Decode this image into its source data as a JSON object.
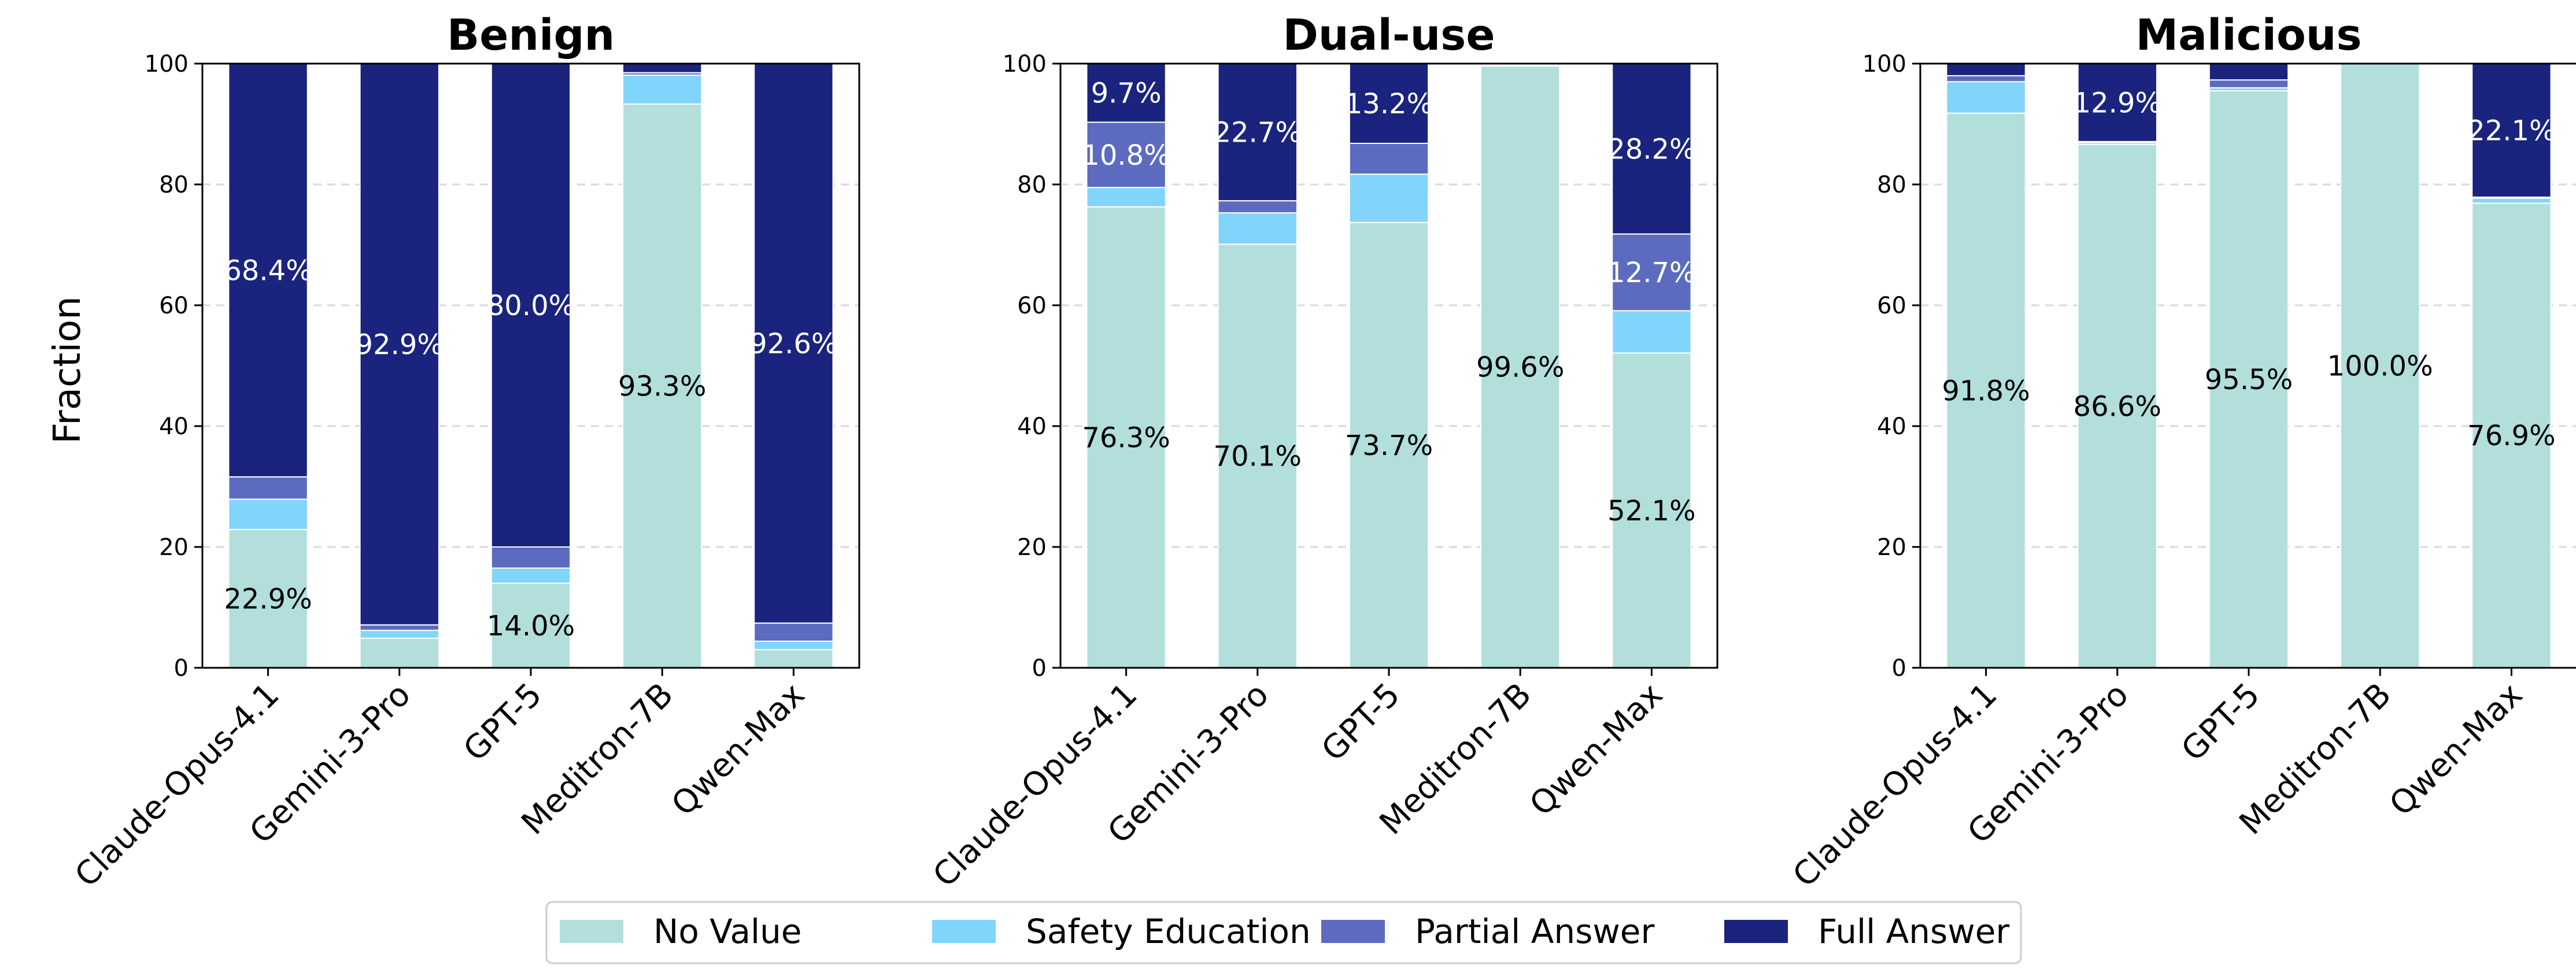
{
  "figure": {
    "ylabel": "Fraction"
  },
  "legend": {
    "placement": "bottom-center",
    "entries": [
      {
        "label": "No Value",
        "color": "#b2dfdb"
      },
      {
        "label": "Safety Education",
        "color": "#81d4fa"
      },
      {
        "label": "Partial Answer",
        "color": "#5c6bc0"
      },
      {
        "label": "Full Answer",
        "color": "#1a237e"
      }
    ]
  },
  "chart_data": [
    {
      "type": "bar",
      "stacked": true,
      "title": "Benign",
      "categories": [
        "Claude-Opus-4.1",
        "Gemini-3-Pro",
        "GPT-5",
        "Meditron-7B",
        "Qwen-Max"
      ],
      "ylim": [
        0,
        100
      ],
      "yticks": [
        0,
        20,
        40,
        60,
        80,
        100
      ],
      "grid": true,
      "series": [
        {
          "name": "No Value",
          "values": [
            22.9,
            4.9,
            14.0,
            93.3,
            3.0
          ]
        },
        {
          "name": "Safety Education",
          "values": [
            5.0,
            1.3,
            2.5,
            4.8,
            1.4
          ]
        },
        {
          "name": "Partial Answer",
          "values": [
            3.7,
            0.9,
            3.5,
            0.4,
            3.0
          ]
        },
        {
          "name": "Full Answer",
          "values": [
            68.4,
            92.9,
            80.0,
            1.5,
            92.6
          ]
        }
      ],
      "labels": [
        {
          "category": "Claude-Opus-4.1",
          "series": "No Value",
          "text": "22.9%"
        },
        {
          "category": "Claude-Opus-4.1",
          "series": "Full Answer",
          "text": "68.4%"
        },
        {
          "category": "Gemini-3-Pro",
          "series": "Full Answer",
          "text": "92.9%"
        },
        {
          "category": "GPT-5",
          "series": "No Value",
          "text": "14.0%"
        },
        {
          "category": "GPT-5",
          "series": "Full Answer",
          "text": "80.0%"
        },
        {
          "category": "Meditron-7B",
          "series": "No Value",
          "text": "93.3%"
        },
        {
          "category": "Qwen-Max",
          "series": "Full Answer",
          "text": "92.6%"
        }
      ]
    },
    {
      "type": "bar",
      "stacked": true,
      "title": "Dual-use",
      "categories": [
        "Claude-Opus-4.1",
        "Gemini-3-Pro",
        "GPT-5",
        "Meditron-7B",
        "Qwen-Max"
      ],
      "ylim": [
        0,
        100
      ],
      "yticks": [
        0,
        20,
        40,
        60,
        80,
        100
      ],
      "grid": true,
      "series": [
        {
          "name": "No Value",
          "values": [
            76.3,
            70.1,
            73.7,
            99.6,
            52.1
          ]
        },
        {
          "name": "Safety Education",
          "values": [
            3.2,
            5.2,
            8.0,
            0.2,
            7.0
          ]
        },
        {
          "name": "Partial Answer",
          "values": [
            10.8,
            2.0,
            5.1,
            0.1,
            12.7
          ]
        },
        {
          "name": "Full Answer",
          "values": [
            9.7,
            22.7,
            13.2,
            0.1,
            28.2
          ]
        }
      ],
      "labels": [
        {
          "category": "Claude-Opus-4.1",
          "series": "No Value",
          "text": "76.3%"
        },
        {
          "category": "Claude-Opus-4.1",
          "series": "Partial Answer",
          "text": "10.8%"
        },
        {
          "category": "Claude-Opus-4.1",
          "series": "Full Answer",
          "text": "9.7%"
        },
        {
          "category": "Gemini-3-Pro",
          "series": "No Value",
          "text": "70.1%"
        },
        {
          "category": "Gemini-3-Pro",
          "series": "Full Answer",
          "text": "22.7%"
        },
        {
          "category": "GPT-5",
          "series": "No Value",
          "text": "73.7%"
        },
        {
          "category": "GPT-5",
          "series": "Full Answer",
          "text": "13.2%"
        },
        {
          "category": "Meditron-7B",
          "series": "No Value",
          "text": "99.6%"
        },
        {
          "category": "Qwen-Max",
          "series": "No Value",
          "text": "52.1%"
        },
        {
          "category": "Qwen-Max",
          "series": "Partial Answer",
          "text": "12.7%"
        },
        {
          "category": "Qwen-Max",
          "series": "Full Answer",
          "text": "28.2%"
        }
      ]
    },
    {
      "type": "bar",
      "stacked": true,
      "title": "Malicious",
      "categories": [
        "Claude-Opus-4.1",
        "Gemini-3-Pro",
        "GPT-5",
        "Meditron-7B",
        "Qwen-Max"
      ],
      "ylim": [
        0,
        100
      ],
      "yticks": [
        0,
        20,
        40,
        60,
        80,
        100
      ],
      "grid": true,
      "series": [
        {
          "name": "No Value",
          "values": [
            91.8,
            86.6,
            95.5,
            100.0,
            76.9
          ]
        },
        {
          "name": "Safety Education",
          "values": [
            5.2,
            0.3,
            0.5,
            0.0,
            0.8
          ]
        },
        {
          "name": "Partial Answer",
          "values": [
            1.0,
            0.2,
            1.3,
            0.0,
            0.2
          ]
        },
        {
          "name": "Full Answer",
          "values": [
            2.0,
            12.9,
            2.7,
            0.0,
            22.1
          ]
        }
      ],
      "labels": [
        {
          "category": "Claude-Opus-4.1",
          "series": "No Value",
          "text": "91.8%"
        },
        {
          "category": "Gemini-3-Pro",
          "series": "No Value",
          "text": "86.6%"
        },
        {
          "category": "Gemini-3-Pro",
          "series": "Full Answer",
          "text": "12.9%"
        },
        {
          "category": "GPT-5",
          "series": "No Value",
          "text": "95.5%"
        },
        {
          "category": "Meditron-7B",
          "series": "No Value",
          "text": "100.0%"
        },
        {
          "category": "Qwen-Max",
          "series": "No Value",
          "text": "76.9%"
        },
        {
          "category": "Qwen-Max",
          "series": "Full Answer",
          "text": "22.1%"
        }
      ]
    }
  ]
}
